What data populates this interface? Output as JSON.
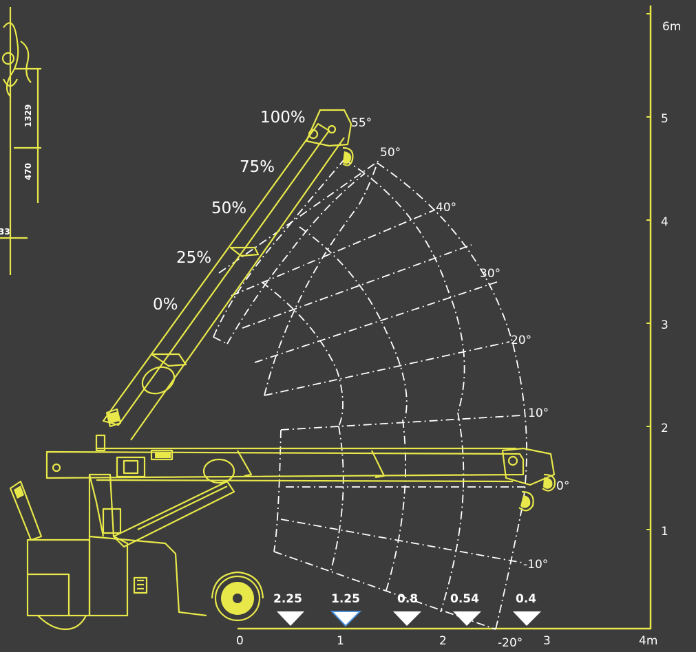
{
  "axes": {
    "vertical_labels": [
      "6m",
      "5",
      "4",
      "3",
      "2",
      "1"
    ],
    "horizontal_labels": [
      "0",
      "1",
      "2",
      "3",
      "4m"
    ]
  },
  "boom_extensions": [
    "100%",
    "75%",
    "50%",
    "25%",
    "0%"
  ],
  "angles": [
    "55°",
    "50°",
    "40°",
    "30°",
    "20°",
    "10°",
    "0°",
    "-10°",
    "-20°"
  ],
  "load_capacities": [
    "2.25",
    "1.25",
    "0.8",
    "0.54",
    "0.4"
  ],
  "dimensions": [
    "1329",
    "470",
    "33"
  ],
  "colors": {
    "background": "#3c3c3c",
    "crane": "#e8e84a",
    "envelope": "#ffffff",
    "load_marker": "#ffffff",
    "load_marker_highlight_outline": "#4a90d9"
  }
}
